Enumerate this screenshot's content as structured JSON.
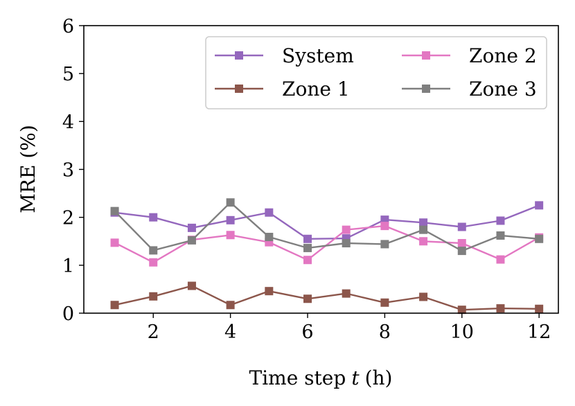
{
  "chart_data": {
    "type": "line",
    "title": "",
    "xlabel": "Time step",
    "xlabel_var": "t",
    "xlabel_unit": "(h)",
    "ylabel": "MRE (%)",
    "xlim": [
      0.2,
      12.5
    ],
    "ylim": [
      0,
      6
    ],
    "x": [
      1,
      2,
      3,
      4,
      5,
      6,
      7,
      8,
      9,
      10,
      11,
      12
    ],
    "xticks": [
      "2",
      "4",
      "6",
      "8",
      "10",
      "12"
    ],
    "yticks": [
      "0",
      "1",
      "2",
      "3",
      "4",
      "5",
      "6"
    ],
    "legend_position": "top-right",
    "series": [
      {
        "name": "System",
        "color": "#9467bd",
        "values": [
          2.1,
          2.0,
          1.78,
          1.94,
          2.1,
          1.55,
          1.56,
          1.95,
          1.89,
          1.8,
          1.93,
          2.25
        ]
      },
      {
        "name": "Zone 1",
        "color": "#8c564b",
        "values": [
          0.17,
          0.35,
          0.57,
          0.17,
          0.46,
          0.3,
          0.41,
          0.22,
          0.34,
          0.07,
          0.1,
          0.09
        ]
      },
      {
        "name": "Zone 2",
        "color": "#e377c2",
        "values": [
          1.47,
          1.06,
          1.53,
          1.63,
          1.48,
          1.11,
          1.74,
          1.82,
          1.5,
          1.46,
          1.12,
          1.58
        ]
      },
      {
        "name": "Zone 3",
        "color": "#7f7f7f",
        "values": [
          2.13,
          1.31,
          1.52,
          2.31,
          1.59,
          1.36,
          1.46,
          1.44,
          1.74,
          1.3,
          1.62,
          1.55
        ]
      }
    ]
  }
}
